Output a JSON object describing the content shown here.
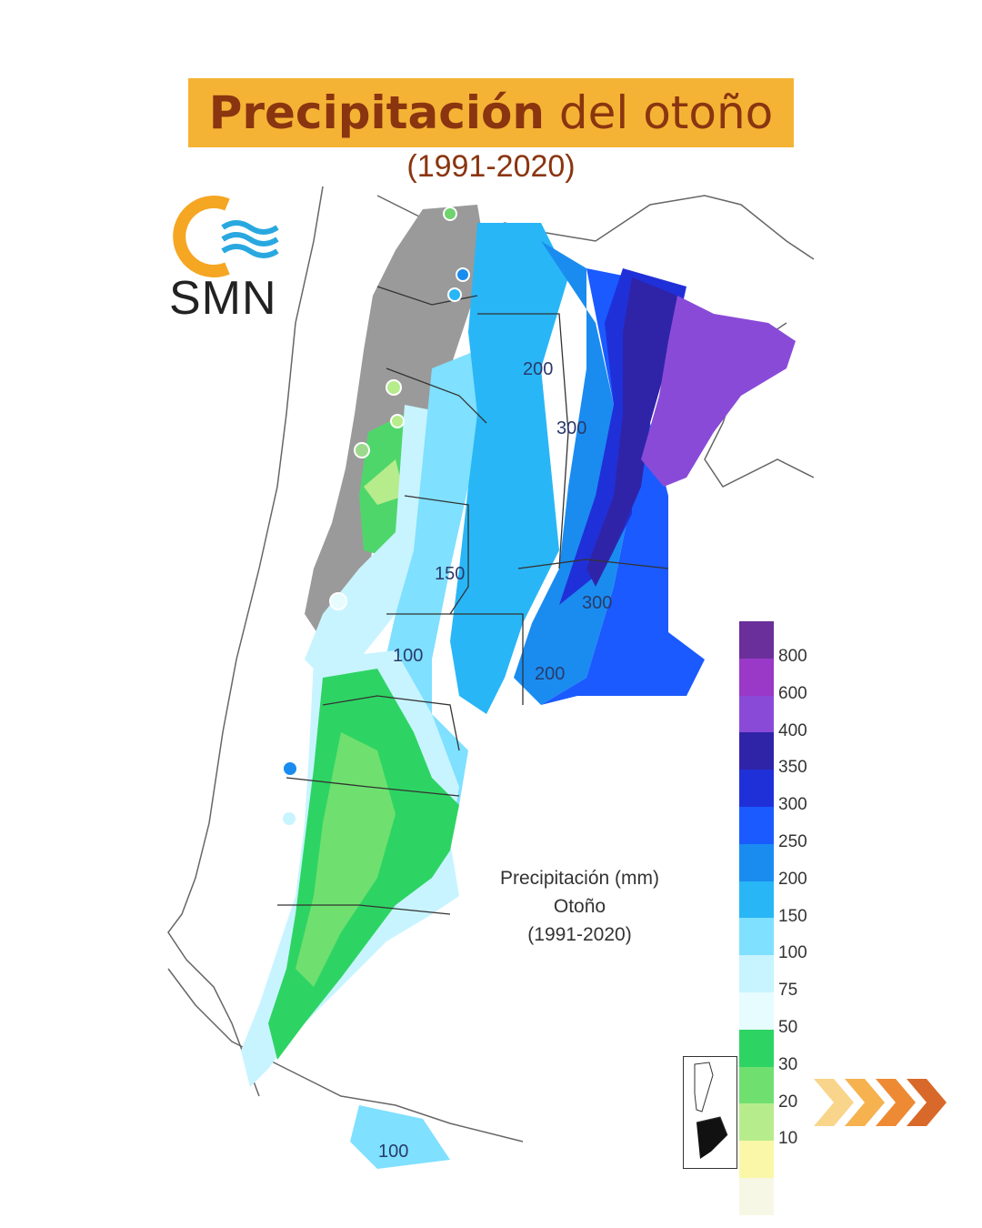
{
  "header": {
    "title_bold": "Precipitación",
    "title_rest": " del otoño",
    "subtitle": "(1991-2020)"
  },
  "logo": {
    "text": "SMN",
    "name": "smn-logo"
  },
  "map": {
    "inner_title_lines": [
      "Precipitación (mm)",
      "Otoño",
      "(1991-2020)"
    ],
    "contour_labels": [
      "200",
      "300",
      "150",
      "300",
      "100",
      "200",
      "100"
    ]
  },
  "colorbar": {
    "ticks": [
      "800",
      "600",
      "400",
      "350",
      "300",
      "250",
      "200",
      "150",
      "100",
      "75",
      "50",
      "30",
      "20",
      "10"
    ],
    "colors": [
      "#6a2f9a",
      "#9a38c8",
      "#8a4ad8",
      "#2f24a8",
      "#2030d8",
      "#1a5aff",
      "#1a8cf0",
      "#29b6f6",
      "#7fe0ff",
      "#c8f4ff",
      "#e6fcff",
      "#2ed463",
      "#6fe06f",
      "#b6ec8c",
      "#fbf7a8",
      "#f7f7e6"
    ]
  },
  "decor": {
    "next_arrows_icon": "next-arrows-icon",
    "inset_icon": "inset-map-icon"
  }
}
